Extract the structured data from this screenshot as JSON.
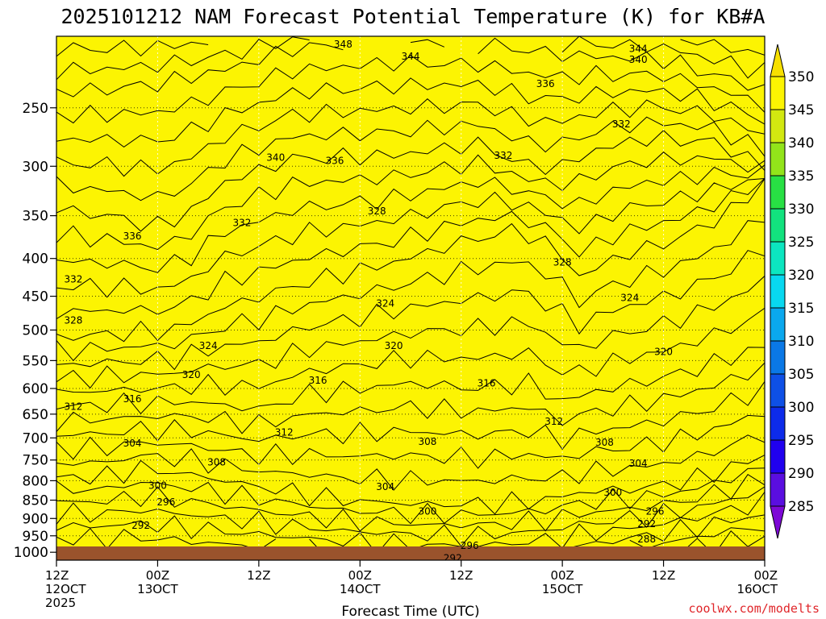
{
  "chart_data": {
    "type": "heatmap",
    "title": "2025101212 NAM Forecast Potential Temperature (K) for KB#A",
    "xlabel": "Forecast Time (UTC)",
    "ylabel": "",
    "credit": "coolwx.com/modelts",
    "x_ticks": [
      {
        "hour": 0,
        "line1": "12Z",
        "line2": "12OCT",
        "line3": "2025"
      },
      {
        "hour": 12,
        "line1": "00Z",
        "line2": "13OCT",
        "line3": ""
      },
      {
        "hour": 24,
        "line1": "12Z",
        "line2": "",
        "line3": ""
      },
      {
        "hour": 36,
        "line1": "00Z",
        "line2": "14OCT",
        "line3": ""
      },
      {
        "hour": 48,
        "line1": "12Z",
        "line2": "",
        "line3": ""
      },
      {
        "hour": 60,
        "line1": "00Z",
        "line2": "15OCT",
        "line3": ""
      },
      {
        "hour": 72,
        "line1": "12Z",
        "line2": "",
        "line3": ""
      },
      {
        "hour": 84,
        "line1": "00Z",
        "line2": "16OCT",
        "line3": ""
      }
    ],
    "xlim_hours": [
      0,
      84
    ],
    "y_scale": "log",
    "ylim": [
      1025,
      200
    ],
    "y_ticks": [
      250,
      300,
      350,
      400,
      450,
      500,
      550,
      600,
      650,
      700,
      750,
      800,
      850,
      900,
      950,
      1000
    ],
    "grid": true,
    "colorbar": {
      "position": "right",
      "levels": [
        285,
        290,
        295,
        300,
        305,
        310,
        315,
        320,
        325,
        330,
        335,
        340,
        345,
        350
      ],
      "labels": [
        "285",
        "290",
        "295",
        "300",
        "305",
        "310",
        "315",
        "320",
        "325",
        "330",
        "335",
        "340",
        "345",
        "350"
      ],
      "colors": [
        "#7d08d6",
        "#5a0ee0",
        "#2000ef",
        "#0d2bea",
        "#0e50e6",
        "#0a78e6",
        "#0aa8ee",
        "#08d8f0",
        "#0ce6c0",
        "#12e27e",
        "#28e044",
        "#92e41a",
        "#d2e810",
        "#fcf402",
        "#f8e000"
      ],
      "extend": "both"
    },
    "contour_labels": [
      {
        "value": 348,
        "hour": 34,
        "p": 205
      },
      {
        "value": 344,
        "hour": 42,
        "p": 213
      },
      {
        "value": 344,
        "hour": 69,
        "p": 208
      },
      {
        "value": 340,
        "hour": 69,
        "p": 215
      },
      {
        "value": 336,
        "hour": 58,
        "p": 232
      },
      {
        "value": 332,
        "hour": 67,
        "p": 263
      },
      {
        "value": 340,
        "hour": 26,
        "p": 292
      },
      {
        "value": 336,
        "hour": 33,
        "p": 295
      },
      {
        "value": 332,
        "hour": 53,
        "p": 290
      },
      {
        "value": 336,
        "hour": 9,
        "p": 373
      },
      {
        "value": 332,
        "hour": 22,
        "p": 358
      },
      {
        "value": 328,
        "hour": 38,
        "p": 345
      },
      {
        "value": 332,
        "hour": 2,
        "p": 427
      },
      {
        "value": 328,
        "hour": 60,
        "p": 405
      },
      {
        "value": 324,
        "hour": 68,
        "p": 452
      },
      {
        "value": 328,
        "hour": 2,
        "p": 485
      },
      {
        "value": 324,
        "hour": 39,
        "p": 460
      },
      {
        "value": 324,
        "hour": 18,
        "p": 525
      },
      {
        "value": 320,
        "hour": 40,
        "p": 525
      },
      {
        "value": 320,
        "hour": 72,
        "p": 535
      },
      {
        "value": 320,
        "hour": 16,
        "p": 575
      },
      {
        "value": 316,
        "hour": 31,
        "p": 585
      },
      {
        "value": 316,
        "hour": 51,
        "p": 590
      },
      {
        "value": 316,
        "hour": 9,
        "p": 620
      },
      {
        "value": 312,
        "hour": 2,
        "p": 635
      },
      {
        "value": 312,
        "hour": 59,
        "p": 665
      },
      {
        "value": 312,
        "hour": 27,
        "p": 688
      },
      {
        "value": 308,
        "hour": 44,
        "p": 708
      },
      {
        "value": 308,
        "hour": 65,
        "p": 710
      },
      {
        "value": 304,
        "hour": 9,
        "p": 712
      },
      {
        "value": 308,
        "hour": 19,
        "p": 755
      },
      {
        "value": 304,
        "hour": 69,
        "p": 758
      },
      {
        "value": 300,
        "hour": 12,
        "p": 812
      },
      {
        "value": 304,
        "hour": 39,
        "p": 815
      },
      {
        "value": 300,
        "hour": 66,
        "p": 830
      },
      {
        "value": 296,
        "hour": 13,
        "p": 855
      },
      {
        "value": 300,
        "hour": 44,
        "p": 880
      },
      {
        "value": 296,
        "hour": 71,
        "p": 880
      },
      {
        "value": 292,
        "hour": 10,
        "p": 920
      },
      {
        "value": 292,
        "hour": 70,
        "p": 915
      },
      {
        "value": 288,
        "hour": 70,
        "p": 960
      },
      {
        "value": 296,
        "hour": 49,
        "p": 980
      },
      {
        "value": 292,
        "hour": 47,
        "p": 1018
      }
    ]
  }
}
